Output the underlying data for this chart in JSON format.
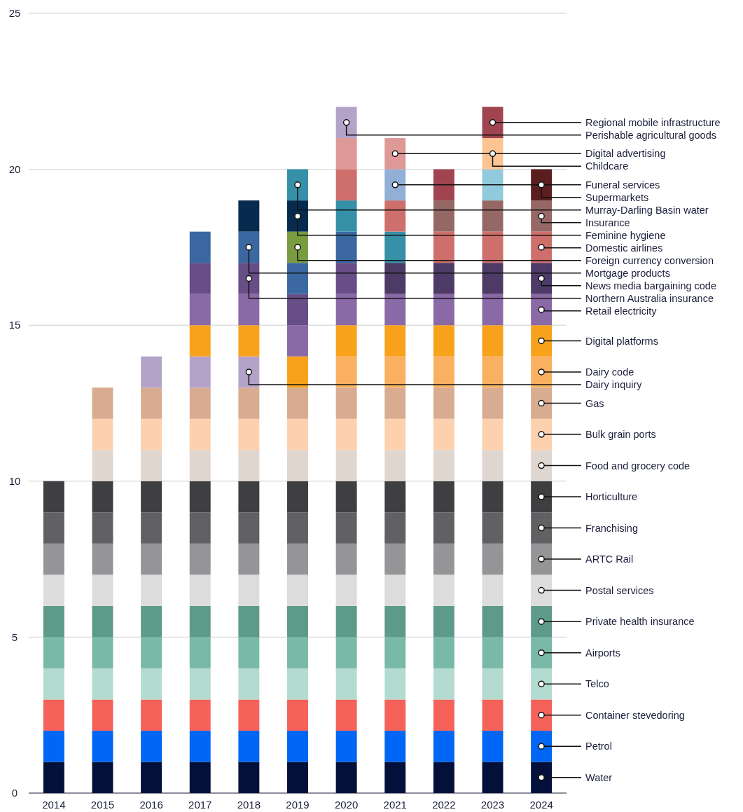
{
  "chart_data": {
    "type": "bar",
    "stacked": true,
    "categories": [
      "2014",
      "2015",
      "2016",
      "2017",
      "2018",
      "2019",
      "2020",
      "2021",
      "2022",
      "2023",
      "2024"
    ],
    "ylim": [
      0,
      25
    ],
    "yticks": [
      0,
      5,
      10,
      15,
      20,
      25
    ],
    "grid": "y",
    "series": [
      {
        "color": "#03103a",
        "values": [
          1,
          1,
          1,
          1,
          1,
          1,
          1,
          1,
          1,
          1,
          1
        ]
      },
      {
        "color": "#0066f5",
        "values": [
          1,
          1,
          1,
          1,
          1,
          1,
          1,
          1,
          1,
          1,
          1
        ]
      },
      {
        "color": "#f4625a",
        "values": [
          1,
          1,
          1,
          1,
          1,
          1,
          1,
          1,
          1,
          1,
          1
        ]
      },
      {
        "color": "#b4dbcf",
        "values": [
          1,
          1,
          1,
          1,
          1,
          1,
          1,
          1,
          1,
          1,
          1
        ]
      },
      {
        "color": "#78b9a7",
        "values": [
          1,
          1,
          1,
          1,
          1,
          1,
          1,
          1,
          1,
          1,
          1
        ]
      },
      {
        "color": "#5e9a89",
        "values": [
          1,
          1,
          1,
          1,
          1,
          1,
          1,
          1,
          1,
          1,
          1
        ]
      },
      {
        "color": "#dcdcdd",
        "values": [
          1,
          1,
          1,
          1,
          1,
          1,
          1,
          1,
          1,
          1,
          1
        ]
      },
      {
        "color": "#959598",
        "values": [
          1,
          1,
          1,
          1,
          1,
          1,
          1,
          1,
          1,
          1,
          1
        ]
      },
      {
        "color": "#616164",
        "values": [
          1,
          1,
          1,
          1,
          1,
          1,
          1,
          1,
          1,
          1,
          1
        ]
      },
      {
        "color": "#3f3f42",
        "values": [
          1,
          1,
          1,
          1,
          1,
          1,
          1,
          1,
          1,
          1,
          1
        ]
      },
      {
        "color": "#e0d6d0",
        "values": [
          null,
          1,
          1,
          1,
          1,
          1,
          1,
          1,
          1,
          1,
          1
        ]
      },
      {
        "color": "#fdd1ad",
        "values": [
          null,
          1,
          1,
          1,
          1,
          1,
          1,
          1,
          1,
          1,
          1
        ]
      },
      {
        "color": "#d7ac90",
        "values": [
          null,
          1,
          1,
          1,
          1,
          1,
          1,
          1,
          1,
          1,
          1
        ]
      },
      {
        "color": "#b4a3c9",
        "values": [
          null,
          null,
          1,
          1,
          1,
          null,
          null,
          null,
          null,
          null,
          null
        ]
      },
      {
        "color": "#f9b161",
        "values": [
          null,
          null,
          null,
          null,
          null,
          null,
          1,
          1,
          1,
          1,
          1
        ]
      },
      {
        "color": "#f8a21b",
        "values": [
          null,
          null,
          null,
          1,
          1,
          1,
          1,
          1,
          1,
          1,
          1
        ]
      },
      {
        "color": "#8a6aa6",
        "values": [
          null,
          null,
          null,
          1,
          1,
          1,
          1,
          1,
          1,
          1,
          1
        ]
      },
      {
        "color": "#674e87",
        "values": [
          null,
          null,
          null,
          1,
          1,
          1,
          1,
          null,
          null,
          null,
          null
        ]
      },
      {
        "color": "#4d3a66",
        "values": [
          null,
          null,
          null,
          null,
          null,
          null,
          null,
          1,
          1,
          1,
          1
        ]
      },
      {
        "color": "#3b68a1",
        "values": [
          null,
          null,
          null,
          1,
          1,
          1,
          1,
          null,
          null,
          null,
          null
        ]
      },
      {
        "color": "#7a9c40",
        "values": [
          null,
          null,
          null,
          null,
          null,
          1,
          null,
          null,
          null,
          null,
          null
        ]
      },
      {
        "color": "#062b4f",
        "values": [
          null,
          null,
          null,
          null,
          1,
          1,
          null,
          null,
          null,
          null,
          null
        ]
      },
      {
        "color": "#3590a8",
        "values": [
          null,
          null,
          null,
          null,
          null,
          1,
          1,
          1,
          null,
          null,
          null
        ]
      },
      {
        "color": "#ce6f6b",
        "values": [
          null,
          null,
          null,
          null,
          null,
          null,
          1,
          1,
          1,
          1,
          1
        ]
      },
      {
        "color": "#956866",
        "values": [
          null,
          null,
          null,
          null,
          null,
          null,
          null,
          null,
          1,
          1,
          1
        ]
      },
      {
        "color": "#92b0d6",
        "values": [
          null,
          null,
          null,
          null,
          null,
          null,
          null,
          1,
          null,
          null,
          null
        ]
      },
      {
        "color": "#91cadc",
        "values": [
          null,
          null,
          null,
          null,
          null,
          null,
          null,
          null,
          null,
          1,
          null
        ]
      },
      {
        "color": "#fcc493",
        "values": [
          null,
          null,
          null,
          null,
          null,
          null,
          null,
          null,
          null,
          1,
          null
        ]
      },
      {
        "color": "#a0444f",
        "values": [
          null,
          null,
          null,
          null,
          null,
          null,
          null,
          null,
          1,
          1,
          null
        ]
      },
      {
        "color": "#5b1e1e",
        "values": [
          null,
          null,
          null,
          null,
          null,
          null,
          null,
          null,
          null,
          null,
          1
        ]
      },
      {
        "color": "#de9997",
        "values": [
          null,
          null,
          null,
          null,
          null,
          null,
          1,
          1,
          null,
          null,
          null
        ]
      },
      {
        "color": "#b4a3c9",
        "values": [
          null,
          null,
          null,
          null,
          null,
          null,
          1,
          null,
          null,
          null,
          null
        ]
      }
    ],
    "annotations": [
      {
        "text": "Regional mobile infrastructure",
        "x": "2023",
        "y": 21.5
      },
      {
        "text": "Perishable agricultural goods",
        "x": "2020",
        "y": 21.5
      },
      {
        "text": "Digital advertising",
        "x": "2021",
        "y": 20.5
      },
      {
        "text": "Childcare",
        "x": "2023",
        "y": 20.5
      },
      {
        "text": "Funeral services",
        "x": "2021",
        "y": 19.5
      },
      {
        "text": "Supermarkets",
        "x": "2024",
        "y": 19.5
      },
      {
        "text": "Murray-Darling Basin water",
        "x": "2019",
        "y": 19.5
      },
      {
        "text": "Insurance",
        "x": "2024",
        "y": 18.5
      },
      {
        "text": "Feminine hygiene",
        "x": "2019",
        "y": 18.5
      },
      {
        "text": "Domestic airlines",
        "x": "2024",
        "y": 17.5
      },
      {
        "text": "Foreign currency conversion",
        "x": "2019",
        "y": 17.5
      },
      {
        "text": "Mortgage products",
        "x": "2018",
        "y": 17.5
      },
      {
        "text": "News media bargaining code",
        "x": "2024",
        "y": 16.5
      },
      {
        "text": "Northern Australia insurance",
        "x": "2018",
        "y": 16.5
      },
      {
        "text": "Retail electricity",
        "x": "2024",
        "y": 15.5
      },
      {
        "text": "Digital platforms",
        "x": "2024",
        "y": 14.5
      },
      {
        "text": "Dairy code",
        "x": "2024",
        "y": 13.5
      },
      {
        "text": "Dairy inquiry",
        "x": "2018",
        "y": 13.5
      },
      {
        "text": "Gas",
        "x": "2024",
        "y": 12.5
      },
      {
        "text": "Bulk grain ports",
        "x": "2024",
        "y": 11.5
      },
      {
        "text": "Food and grocery code",
        "x": "2024",
        "y": 10.5
      },
      {
        "text": "Horticulture",
        "x": "2024",
        "y": 9.5
      },
      {
        "text": "Franchising",
        "x": "2024",
        "y": 8.5
      },
      {
        "text": "ARTC Rail",
        "x": "2024",
        "y": 7.5
      },
      {
        "text": "Postal services",
        "x": "2024",
        "y": 6.5
      },
      {
        "text": "Private health insurance",
        "x": "2024",
        "y": 5.5
      },
      {
        "text": "Airports",
        "x": "2024",
        "y": 4.5
      },
      {
        "text": "Telco",
        "x": "2024",
        "y": 3.5
      },
      {
        "text": "Container stevedoring",
        "x": "2024",
        "y": 2.5
      },
      {
        "text": "Petrol",
        "x": "2024",
        "y": 1.5
      },
      {
        "text": "Water",
        "x": "2024",
        "y": 0.5
      }
    ]
  }
}
